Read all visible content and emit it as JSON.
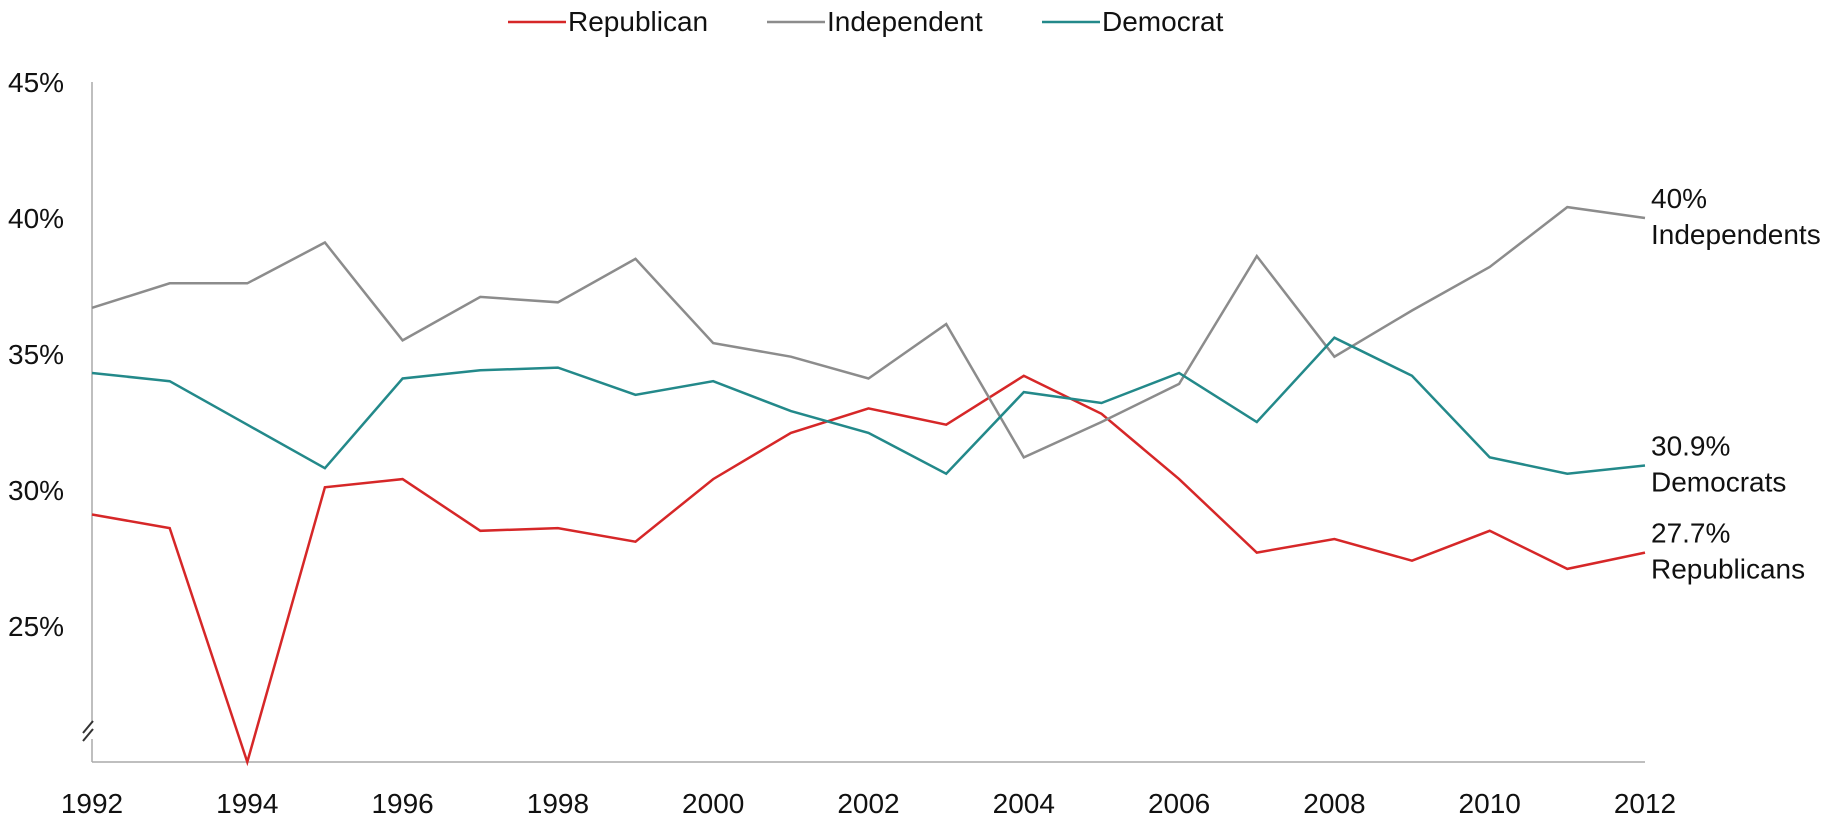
{
  "chart_data": {
    "type": "line",
    "title": "",
    "xlabel": "",
    "ylabel": "",
    "x": [
      1992,
      1993,
      1994,
      1995,
      1996,
      1997,
      1998,
      1999,
      2000,
      2001,
      2002,
      2003,
      2004,
      2005,
      2006,
      2007,
      2008,
      2009,
      2010,
      2011,
      2012
    ],
    "x_ticks": [
      "1992",
      "1994",
      "1996",
      "1998",
      "2000",
      "2002",
      "2004",
      "2006",
      "2008",
      "2010",
      "2012"
    ],
    "y_ticks": [
      "25%",
      "30%",
      "35%",
      "40%",
      "45%"
    ],
    "ylim": [
      20,
      45
    ],
    "y_axis_break": true,
    "grid": false,
    "legend_position": "top-center",
    "series": [
      {
        "name": "Republican",
        "color": "#d62728",
        "values": [
          29.1,
          28.6,
          20.0,
          30.1,
          30.4,
          28.5,
          28.6,
          28.1,
          30.4,
          32.1,
          33.0,
          32.4,
          34.2,
          32.8,
          30.4,
          27.7,
          28.2,
          27.4,
          28.5,
          27.1,
          27.7
        ],
        "end_label": [
          "27.7%",
          "Republicans"
        ]
      },
      {
        "name": "Independent",
        "color": "#8c8c8c",
        "values": [
          36.7,
          37.6,
          37.6,
          39.1,
          35.5,
          37.1,
          36.9,
          38.5,
          35.4,
          34.9,
          34.1,
          36.1,
          31.2,
          32.5,
          33.9,
          38.6,
          34.9,
          36.6,
          38.2,
          40.4,
          40.0
        ],
        "end_label": [
          "40%",
          "Independents"
        ]
      },
      {
        "name": "Democrat",
        "color": "#23898a",
        "values": [
          34.3,
          34.0,
          32.4,
          30.8,
          34.1,
          34.4,
          34.5,
          33.5,
          34.0,
          32.9,
          32.1,
          30.6,
          33.6,
          33.2,
          34.3,
          32.5,
          35.6,
          34.2,
          31.2,
          30.6,
          30.9
        ],
        "end_label": [
          "30.9%",
          "Democrats"
        ]
      }
    ]
  }
}
